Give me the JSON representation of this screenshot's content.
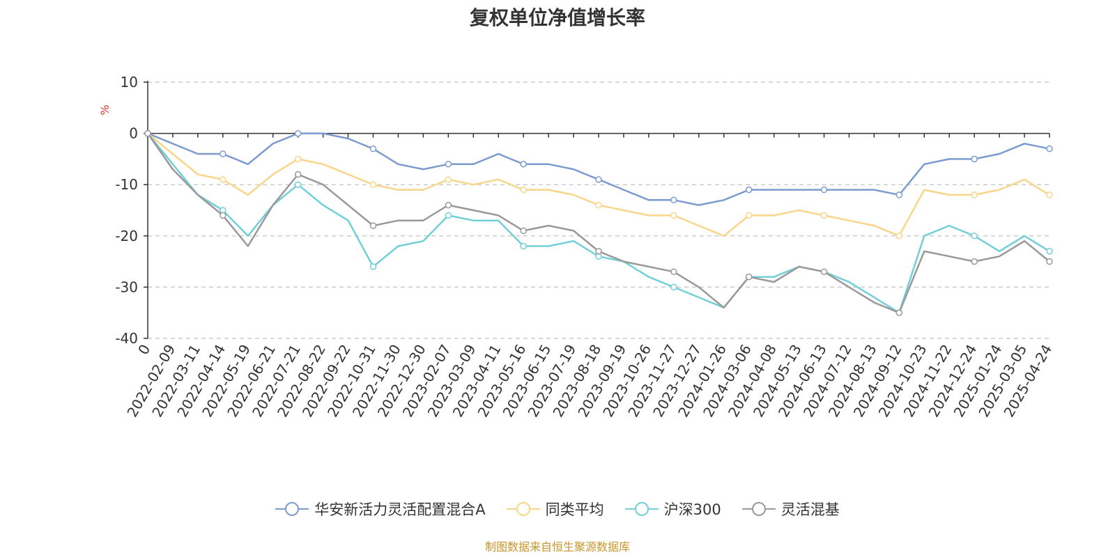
{
  "chart_data": {
    "type": "line",
    "title": "复权单位净值增长率",
    "ylabel": "%",
    "ylim": [
      -40,
      10
    ],
    "yticks": [
      10,
      0,
      -10,
      -20,
      -30,
      -40
    ],
    "grid": true,
    "legend_position": "bottom",
    "source": "制图数据来自恒生聚源数据库",
    "x": [
      "0",
      "2022-02-09",
      "2022-03-11",
      "2022-04-14",
      "2022-05-19",
      "2022-06-21",
      "2022-07-21",
      "2022-08-22",
      "2022-09-22",
      "2022-10-31",
      "2022-11-30",
      "2022-12-30",
      "2023-02-07",
      "2023-03-09",
      "2023-04-11",
      "2023-05-16",
      "2023-06-15",
      "2023-07-19",
      "2023-08-18",
      "2023-09-19",
      "2023-10-26",
      "2023-11-27",
      "2023-12-27",
      "2024-01-26",
      "2024-03-06",
      "2024-04-08",
      "2024-05-13",
      "2024-06-13",
      "2024-07-12",
      "2024-08-13",
      "2024-09-12",
      "2024-10-23",
      "2024-11-22",
      "2024-12-24",
      "2025-01-24",
      "2025-03-05",
      "2025-04-24"
    ],
    "series": [
      {
        "name": "华安新活力灵活配置混合A",
        "color": "#7b9bd0",
        "values": [
          0,
          -2,
          -4,
          -4,
          -6,
          -2,
          0,
          0,
          -1,
          -3,
          -6,
          -7,
          -6,
          -6,
          -4,
          -6,
          -6,
          -7,
          -9,
          -11,
          -13,
          -13,
          -14,
          -13,
          -11,
          -11,
          -11,
          -11,
          -11,
          -11,
          -12,
          -6,
          -5,
          -5,
          -4,
          -2,
          -3
        ]
      },
      {
        "name": "同类平均",
        "color": "#f9d58a",
        "values": [
          0,
          -4,
          -8,
          -9,
          -12,
          -8,
          -5,
          -6,
          -8,
          -10,
          -11,
          -11,
          -9,
          -10,
          -9,
          -11,
          -11,
          -12,
          -14,
          -15,
          -16,
          -16,
          -18,
          -20,
          -16,
          -16,
          -15,
          -16,
          -17,
          -18,
          -20,
          -11,
          -12,
          -12,
          -11,
          -9,
          -12
        ]
      },
      {
        "name": "沪深300",
        "color": "#72cfd8",
        "values": [
          0,
          -6,
          -12,
          -15,
          -20,
          -14,
          -10,
          -14,
          -17,
          -26,
          -22,
          -21,
          -16,
          -17,
          -17,
          -22,
          -22,
          -21,
          -24,
          -25,
          -28,
          -30,
          -32,
          -34,
          -28,
          -28,
          -26,
          -27,
          -29,
          -32,
          -35,
          -20,
          -18,
          -20,
          -23,
          -20,
          -23
        ]
      },
      {
        "name": "灵活混基",
        "color": "#999999",
        "values": [
          0,
          -7,
          -12,
          -16,
          -22,
          -14,
          -8,
          -10,
          -14,
          -18,
          -17,
          -17,
          -14,
          -15,
          -16,
          -19,
          -18,
          -19,
          -23,
          -25,
          -26,
          -27,
          -30,
          -34,
          -28,
          -29,
          -26,
          -27,
          -30,
          -33,
          -35,
          -23,
          -24,
          -25,
          -24,
          -21,
          -25
        ]
      }
    ]
  }
}
